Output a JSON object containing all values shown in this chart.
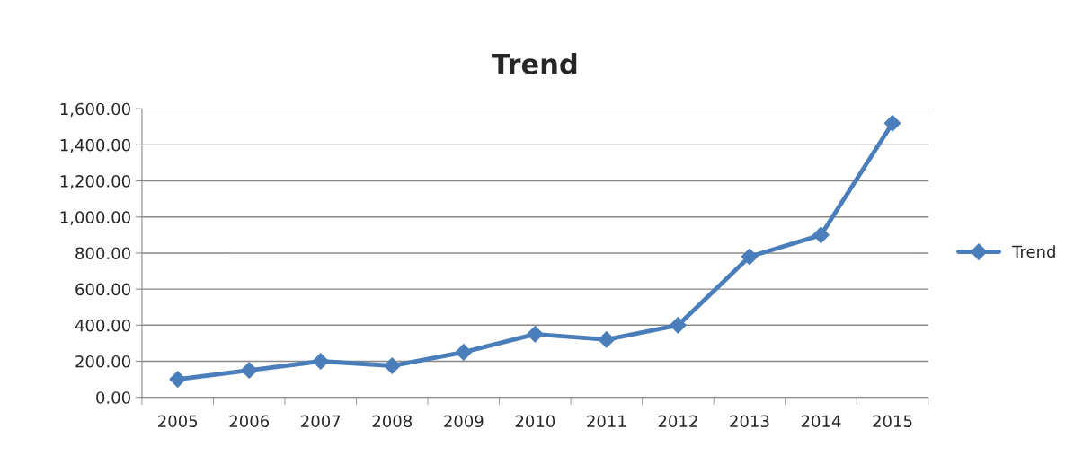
{
  "chart_data": {
    "type": "line",
    "title": "Trend",
    "categories": [
      "2005",
      "2006",
      "2007",
      "2008",
      "2009",
      "2010",
      "2011",
      "2012",
      "2013",
      "2014",
      "2015"
    ],
    "series": [
      {
        "name": "Trend",
        "color": "#4a7ebb",
        "values": [
          100,
          150,
          200,
          175,
          250,
          350,
          320,
          400,
          780,
          900,
          1520
        ]
      }
    ],
    "ylim": [
      0,
      1600
    ],
    "yticks": [
      {
        "value": 0,
        "label": "0.00"
      },
      {
        "value": 200,
        "label": "200.00"
      },
      {
        "value": 400,
        "label": "400.00"
      },
      {
        "value": 600,
        "label": "600.00"
      },
      {
        "value": 800,
        "label": "800.00"
      },
      {
        "value": 1000,
        "label": "1,000.00"
      },
      {
        "value": 1200,
        "label": "1,200.00"
      },
      {
        "value": 1400,
        "label": "1,400.00"
      },
      {
        "value": 1600,
        "label": "1,600.00"
      }
    ],
    "grid": "y",
    "legend": "right",
    "marker": "diamond",
    "line_style": "solid"
  }
}
